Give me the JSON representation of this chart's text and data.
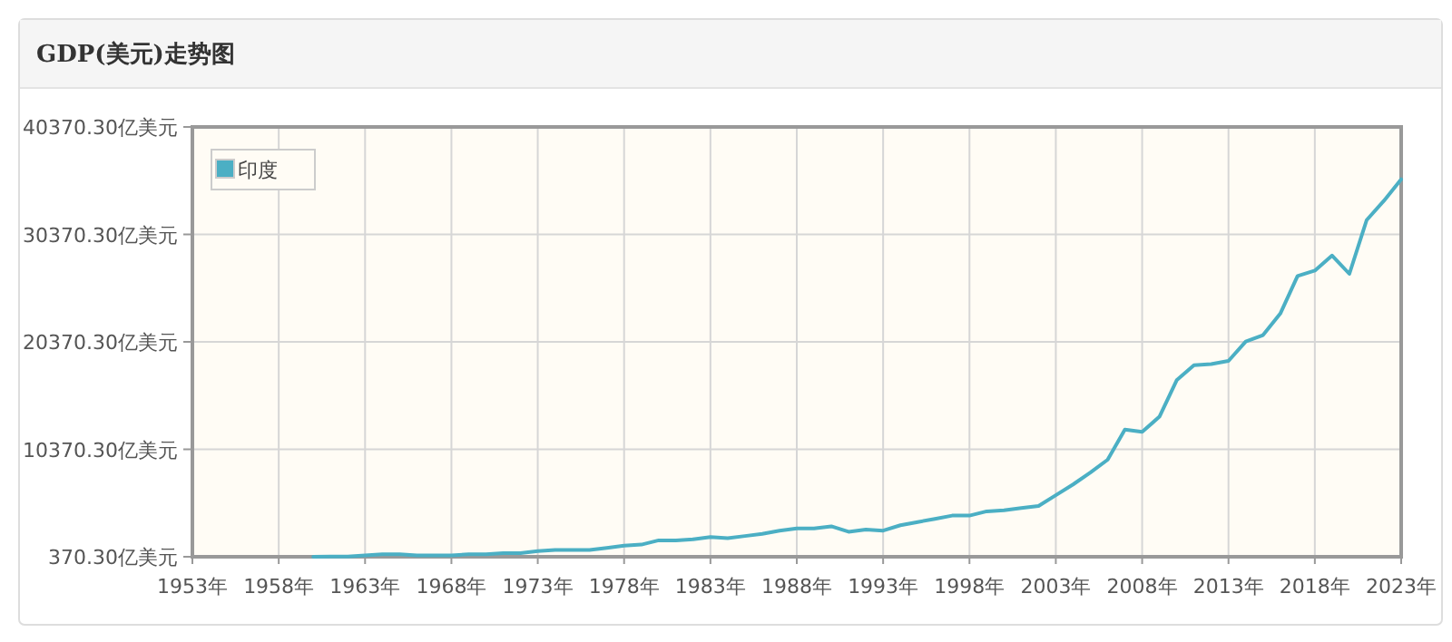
{
  "chart_data": {
    "type": "line",
    "title": "GDP(美元)走势图",
    "x": [
      1960,
      1961,
      1962,
      1963,
      1964,
      1965,
      1966,
      1967,
      1968,
      1969,
      1970,
      1971,
      1972,
      1973,
      1974,
      1975,
      1976,
      1977,
      1978,
      1979,
      1980,
      1981,
      1982,
      1983,
      1984,
      1985,
      1986,
      1987,
      1988,
      1989,
      1990,
      1991,
      1992,
      1993,
      1994,
      1995,
      1996,
      1997,
      1998,
      1999,
      2000,
      2001,
      2002,
      2003,
      2004,
      2005,
      2006,
      2007,
      2008,
      2009,
      2010,
      2011,
      2012,
      2013,
      2014,
      2015,
      2016,
      2017,
      2018,
      2019,
      2020,
      2021,
      2022,
      2023
    ],
    "series": [
      {
        "name": "印度",
        "color": "#4bafc4",
        "values": [
          370.3,
          400,
          400,
          500,
          600,
          600,
          500,
          500,
          500,
          600,
          600,
          700,
          700,
          900,
          1000,
          1000,
          1000,
          1200,
          1400,
          1500,
          1900,
          1900,
          2000,
          2200,
          2100,
          2300,
          2500,
          2800,
          3000,
          3000,
          3200,
          2700,
          2900,
          2800,
          3300,
          3600,
          3900,
          4200,
          4200,
          4600,
          4700,
          4900,
          5100,
          6100,
          7100,
          8200,
          9400,
          12200,
          12000,
          13400,
          16800,
          18200,
          18300,
          18600,
          20400,
          21000,
          23000,
          26500,
          27000,
          28400,
          26700,
          31700,
          33500,
          35500
        ]
      }
    ],
    "xlim": [
      1953,
      2023
    ],
    "xticks": [
      {
        "value": 1953,
        "label": "1953年"
      },
      {
        "value": 1958,
        "label": "1958年"
      },
      {
        "value": 1963,
        "label": "1963年"
      },
      {
        "value": 1968,
        "label": "1968年"
      },
      {
        "value": 1973,
        "label": "1973年"
      },
      {
        "value": 1978,
        "label": "1978年"
      },
      {
        "value": 1983,
        "label": "1983年"
      },
      {
        "value": 1988,
        "label": "1988年"
      },
      {
        "value": 1993,
        "label": "1993年"
      },
      {
        "value": 1998,
        "label": "1998年"
      },
      {
        "value": 2003,
        "label": "2003年"
      },
      {
        "value": 2008,
        "label": "2008年"
      },
      {
        "value": 2013,
        "label": "2013年"
      },
      {
        "value": 2018,
        "label": "2018年"
      },
      {
        "value": 2023,
        "label": "2023年"
      }
    ],
    "ylim": [
      370.3,
      40370.3
    ],
    "yticks": [
      {
        "value": 370.3,
        "label": "370.30亿美元"
      },
      {
        "value": 10370.3,
        "label": "10370.30亿美元"
      },
      {
        "value": 20370.3,
        "label": "20370.30亿美元"
      },
      {
        "value": 30370.3,
        "label": "30370.30亿美元"
      },
      {
        "value": 40370.3,
        "label": "40370.30亿美元"
      }
    ],
    "grid": true,
    "legend": "top left",
    "marker": "none",
    "line_style": "solid"
  }
}
